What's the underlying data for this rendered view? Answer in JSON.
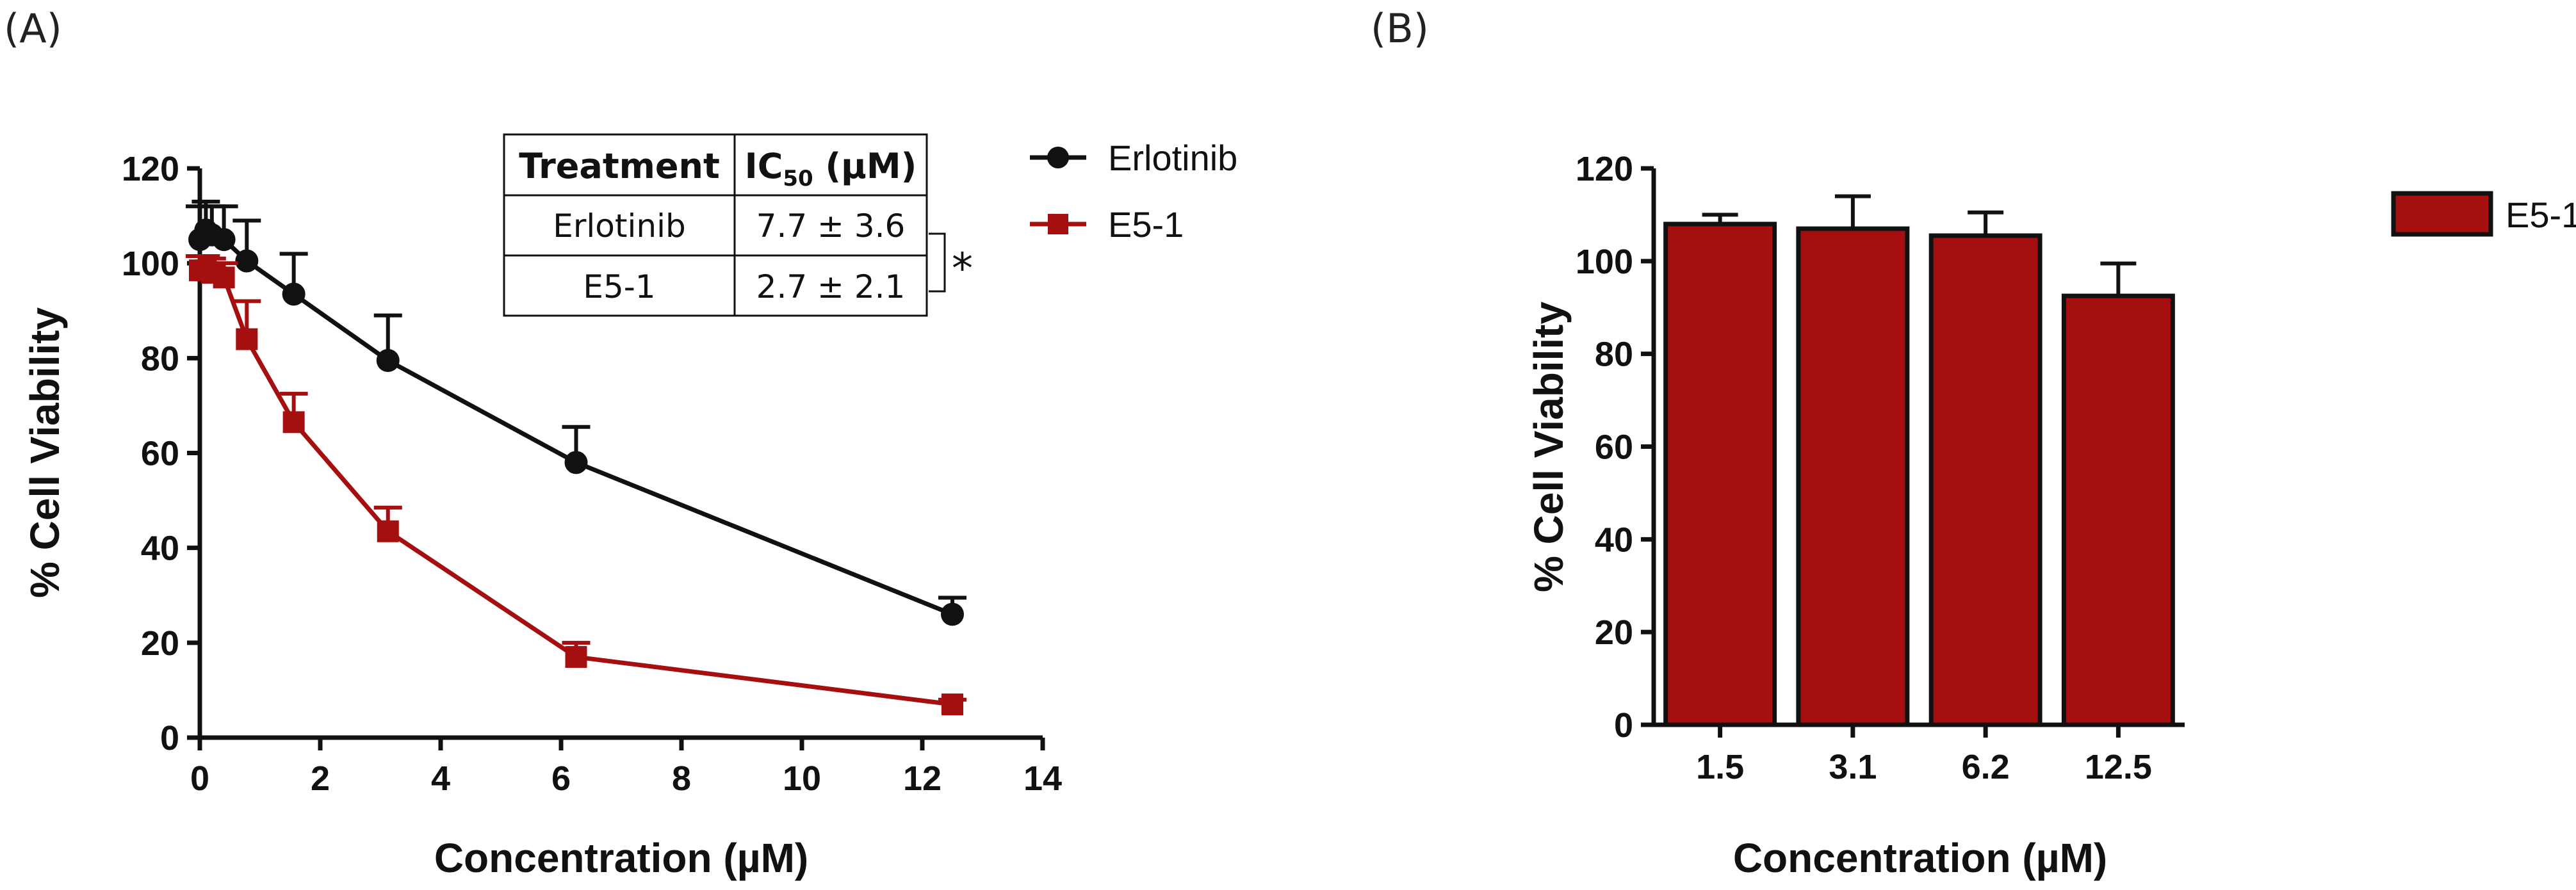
{
  "chart_data": [
    {
      "panel": "(A)",
      "type": "line",
      "xlabel": "Concentration (µM)",
      "ylabel": "% Cell Viability",
      "xlim": [
        0,
        14
      ],
      "ylim": [
        0,
        120
      ],
      "xticks": [
        0,
        2,
        4,
        6,
        8,
        10,
        12,
        14
      ],
      "yticks": [
        0,
        20,
        40,
        60,
        80,
        100,
        120
      ],
      "series": [
        {
          "name": "Erlotinib",
          "color": "#111111",
          "marker": "circle",
          "x": [
            0.0,
            0.1,
            0.2,
            0.4,
            0.78,
            1.56,
            3.125,
            6.25,
            12.5
          ],
          "y": [
            105,
            107,
            106,
            105,
            100.5,
            93.5,
            79.5,
            58,
            26
          ],
          "err": [
            7,
            6,
            6,
            7,
            8.5,
            8.5,
            9.5,
            7.5,
            3.5
          ]
        },
        {
          "name": "E5-1",
          "color": "#a50f0f",
          "marker": "square",
          "x": [
            0.0,
            0.1,
            0.2,
            0.4,
            0.78,
            1.56,
            3.125,
            6.25,
            12.5
          ],
          "y": [
            98.5,
            98.5,
            98,
            97,
            84,
            66.5,
            43.5,
            17,
            7
          ],
          "err": [
            3,
            3,
            3,
            3,
            8,
            6,
            5,
            3,
            1
          ]
        }
      ],
      "ic50_table": {
        "header_treatment": "Treatment",
        "header_ic": "IC",
        "header_sub": "50",
        "header_unit": " (µM)",
        "rows": [
          {
            "treatment": "Erlotinib",
            "ic50": "7.7 ± 3.6"
          },
          {
            "treatment": "E5-1",
            "ic50": "2.7 ± 2.1"
          }
        ],
        "significance": "*"
      }
    },
    {
      "panel": "(B)",
      "type": "bar",
      "xlabel": "Concentration (µM)",
      "ylabel": "% Cell Viability",
      "ylim": [
        0,
        120
      ],
      "yticks": [
        0,
        20,
        40,
        60,
        80,
        100,
        120
      ],
      "categories": [
        "1.5",
        "3.1",
        "6.2",
        "12.5"
      ],
      "series": [
        {
          "name": "E5-1",
          "color": "#a50f0f",
          "values": [
            108,
            107,
            105.5,
            92.5
          ],
          "err": [
            2,
            7,
            5,
            7
          ]
        }
      ]
    }
  ]
}
